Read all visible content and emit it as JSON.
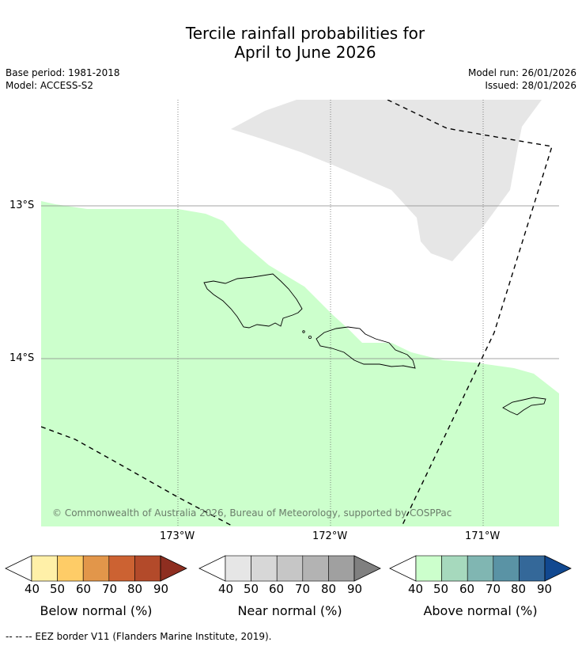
{
  "title_line1": "Tercile rainfall probabilities for",
  "title_line2": "April to June 2026",
  "meta": {
    "base_period": "Base period: 1981-2018",
    "model": "Model: ACCESS-S2",
    "model_run": "Model run: 26/01/2026",
    "issued": "Issued: 28/01/2026"
  },
  "map": {
    "lat_labels": [
      "13°S",
      "14°S"
    ],
    "lon_labels": [
      "173°W",
      "172°W",
      "171°W"
    ],
    "copyright": "© Commonwealth of Australia 2026, Bureau of Meteorology, supported by COSPPac"
  },
  "legends": [
    {
      "label": "Below normal (%)",
      "ticks": [
        "40",
        "50",
        "60",
        "70",
        "80",
        "90"
      ],
      "colors": [
        "#fff0a8",
        "#fecc67",
        "#e2964a",
        "#cc6232",
        "#b34a2a",
        "#8e2e20"
      ]
    },
    {
      "label": "Near normal (%)",
      "ticks": [
        "40",
        "50",
        "60",
        "70",
        "80",
        "90"
      ],
      "colors": [
        "#e6e6e6",
        "#d7d7d7",
        "#c6c6c6",
        "#b3b3b3",
        "#a0a0a0",
        "#808080"
      ]
    },
    {
      "label": "Above normal (%)",
      "ticks": [
        "40",
        "50",
        "60",
        "70",
        "80",
        "90"
      ],
      "colors": [
        "#ccffcc",
        "#a6d9bd",
        "#80b6b2",
        "#5a93a5",
        "#346899",
        "#114890"
      ]
    }
  ],
  "footnote": "--  --  -- EEZ border V11 (Flanders Marine Institute, 2019)."
}
